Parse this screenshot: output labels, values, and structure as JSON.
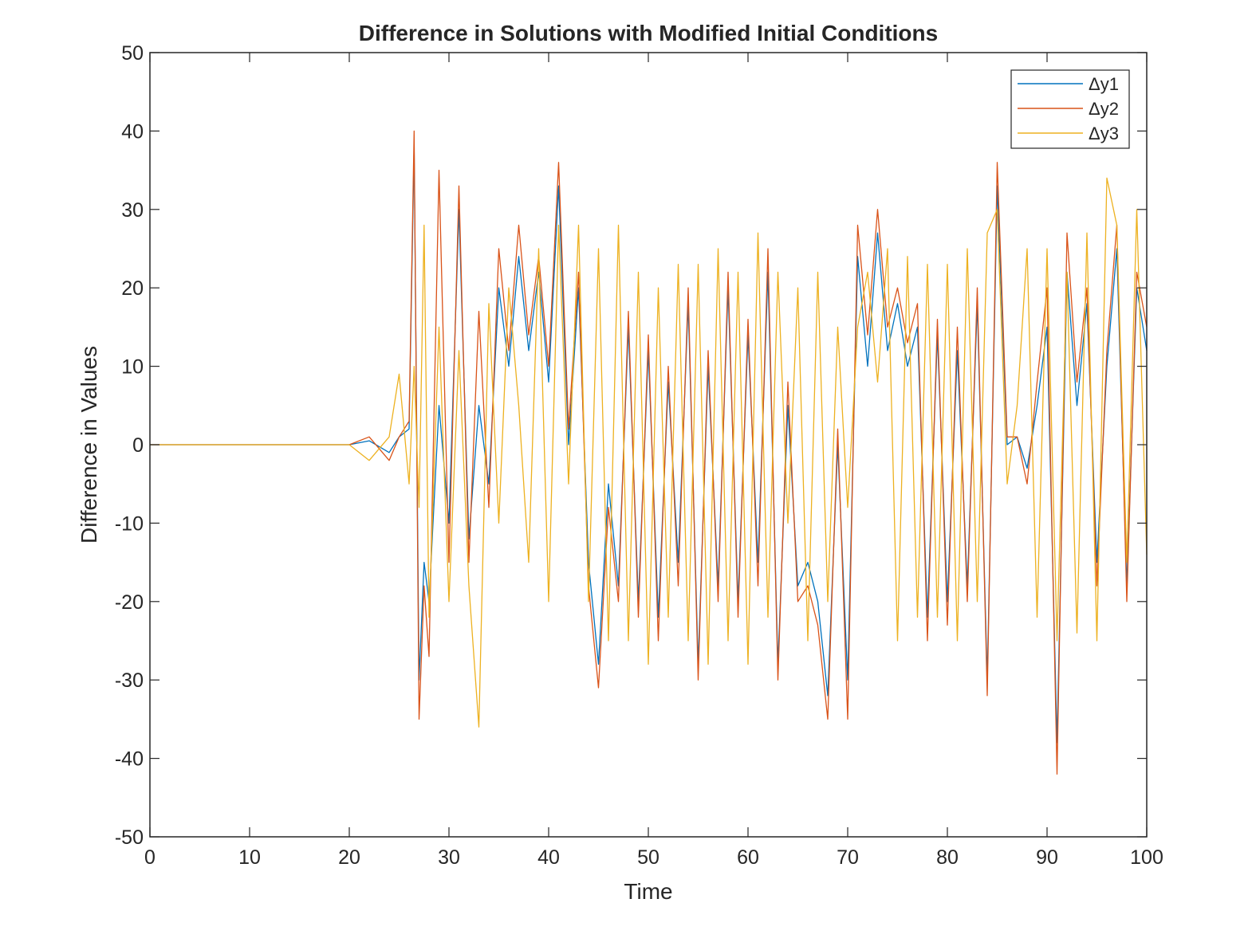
{
  "chart_data": {
    "type": "line",
    "title": "Difference in Solutions with Modified Initial Conditions",
    "xlabel": "Time",
    "ylabel": "Difference in Values",
    "xlim": [
      0,
      100
    ],
    "ylim": [
      -50,
      50
    ],
    "x_ticks": [
      "0",
      "10",
      "20",
      "30",
      "40",
      "50",
      "60",
      "70",
      "80",
      "90",
      "100"
    ],
    "y_ticks": [
      "-50",
      "-40",
      "-30",
      "-20",
      "-10",
      "0",
      "10",
      "20",
      "30",
      "40",
      "50"
    ],
    "grid": false,
    "legend_position": "top-right",
    "series": [
      {
        "name": "Δy1",
        "color": "#0072BD",
        "x": [
          0,
          10,
          20,
          22,
          24,
          25,
          26,
          26.5,
          27,
          27.5,
          28,
          29,
          30,
          31,
          32,
          33,
          34,
          35,
          36,
          37,
          38,
          39,
          40,
          41,
          42,
          43,
          44,
          45,
          46,
          47,
          48,
          49,
          50,
          51,
          52,
          53,
          54,
          55,
          56,
          57,
          58,
          59,
          60,
          61,
          62,
          63,
          64,
          65,
          66,
          67,
          68,
          69,
          70,
          71,
          72,
          73,
          74,
          75,
          76,
          77,
          78,
          79,
          80,
          81,
          82,
          83,
          84,
          85,
          86,
          87,
          88,
          89,
          90,
          91,
          92,
          93,
          94,
          95,
          96,
          97,
          98,
          99,
          100
        ],
        "y": [
          0,
          0,
          0,
          0.5,
          -1,
          1,
          2,
          38,
          -30,
          -15,
          -20,
          5,
          -10,
          30,
          -12,
          5,
          -5,
          20,
          10,
          24,
          12,
          22,
          8,
          33,
          0,
          20,
          -15,
          -28,
          -5,
          -18,
          15,
          -20,
          12,
          -22,
          8,
          -15,
          18,
          -28,
          10,
          -18,
          20,
          -20,
          14,
          -15,
          22,
          -28,
          5,
          -18,
          -15,
          -20,
          -32,
          0,
          -30,
          24,
          10,
          27,
          12,
          18,
          10,
          15,
          -22,
          14,
          -20,
          12,
          -18,
          18,
          -30,
          33,
          0,
          1,
          -3,
          5,
          15,
          -38,
          22,
          5,
          18,
          -15,
          10,
          25,
          -18,
          20,
          12
        ]
      },
      {
        "name": "Δy2",
        "color": "#D95319",
        "x": [
          0,
          10,
          20,
          22,
          24,
          25,
          26,
          26.5,
          27,
          27.5,
          28,
          29,
          30,
          31,
          32,
          33,
          34,
          35,
          36,
          37,
          38,
          39,
          40,
          41,
          42,
          43,
          44,
          45,
          46,
          47,
          48,
          49,
          50,
          51,
          52,
          53,
          54,
          55,
          56,
          57,
          58,
          59,
          60,
          61,
          62,
          63,
          64,
          65,
          66,
          67,
          68,
          69,
          70,
          71,
          72,
          73,
          74,
          75,
          76,
          77,
          78,
          79,
          80,
          81,
          82,
          83,
          84,
          85,
          86,
          87,
          88,
          89,
          90,
          91,
          92,
          93,
          94,
          95,
          96,
          97,
          98,
          99,
          100
        ],
        "y": [
          0,
          0,
          0,
          1,
          -2,
          1,
          3,
          40,
          -35,
          -18,
          -27,
          35,
          -15,
          33,
          -15,
          17,
          -8,
          25,
          12,
          28,
          14,
          24,
          10,
          36,
          2,
          22,
          -18,
          -31,
          -8,
          -20,
          17,
          -22,
          14,
          -25,
          10,
          -18,
          20,
          -30,
          12,
          -20,
          22,
          -22,
          16,
          -18,
          25,
          -30,
          8,
          -20,
          -18,
          -23,
          -35,
          2,
          -35,
          28,
          14,
          30,
          15,
          20,
          13,
          18,
          -25,
          16,
          -23,
          15,
          -20,
          20,
          -32,
          36,
          1,
          1,
          -5,
          8,
          20,
          -42,
          27,
          8,
          20,
          -18,
          12,
          28,
          -20,
          22,
          15
        ]
      },
      {
        "name": "Δy3",
        "color": "#EDB120",
        "x": [
          0,
          10,
          20,
          22,
          24,
          25,
          26,
          26.5,
          27,
          27.5,
          28,
          29,
          30,
          31,
          32,
          33,
          34,
          35,
          36,
          37,
          38,
          39,
          40,
          41,
          42,
          43,
          44,
          45,
          46,
          47,
          48,
          49,
          50,
          51,
          52,
          53,
          54,
          55,
          56,
          57,
          58,
          59,
          60,
          61,
          62,
          63,
          64,
          65,
          66,
          67,
          68,
          69,
          70,
          71,
          72,
          73,
          74,
          75,
          76,
          77,
          78,
          79,
          80,
          81,
          82,
          83,
          84,
          85,
          86,
          87,
          88,
          89,
          90,
          91,
          92,
          93,
          94,
          95,
          96,
          97,
          98,
          99,
          100
        ],
        "y": [
          0,
          0,
          0,
          -2,
          1,
          9,
          -5,
          10,
          -8,
          28,
          -22,
          15,
          -20,
          12,
          -18,
          -36,
          18,
          -10,
          20,
          5,
          -15,
          25,
          -20,
          28,
          -5,
          28,
          -20,
          25,
          -25,
          28,
          -25,
          22,
          -28,
          20,
          -22,
          23,
          -25,
          23,
          -28,
          25,
          -25,
          22,
          -28,
          27,
          -22,
          22,
          -10,
          20,
          -25,
          22,
          -20,
          15,
          -8,
          15,
          22,
          8,
          25,
          -25,
          24,
          -22,
          23,
          -22,
          23,
          -25,
          25,
          -20,
          27,
          30,
          -5,
          5,
          25,
          -22,
          25,
          -25,
          22,
          -24,
          27,
          -25,
          34,
          28,
          -15,
          30,
          -14
        ]
      }
    ]
  }
}
